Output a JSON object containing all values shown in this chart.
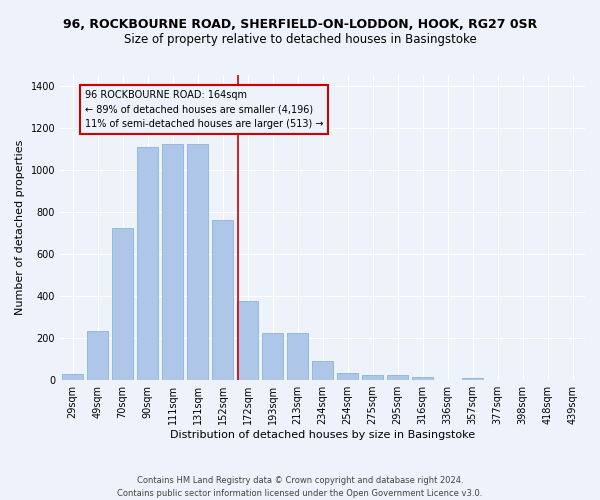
{
  "title": "96, ROCKBOURNE ROAD, SHERFIELD-ON-LODDON, HOOK, RG27 0SR",
  "subtitle": "Size of property relative to detached houses in Basingstoke",
  "xlabel": "Distribution of detached houses by size in Basingstoke",
  "ylabel": "Number of detached properties",
  "categories": [
    "29sqm",
    "49sqm",
    "70sqm",
    "90sqm",
    "111sqm",
    "131sqm",
    "152sqm",
    "172sqm",
    "193sqm",
    "213sqm",
    "234sqm",
    "254sqm",
    "275sqm",
    "295sqm",
    "316sqm",
    "336sqm",
    "357sqm",
    "377sqm",
    "398sqm",
    "418sqm",
    "439sqm"
  ],
  "values": [
    30,
    235,
    725,
    1110,
    1120,
    1120,
    760,
    375,
    225,
    225,
    90,
    32,
    25,
    22,
    15,
    0,
    10,
    0,
    0,
    0,
    0
  ],
  "bar_color": "#aec6e8",
  "bar_edge_color": "#7bafd4",
  "reference_line_color": "#cc0000",
  "annotation_text": "96 ROCKBOURNE ROAD: 164sqm\n← 89% of detached houses are smaller (4,196)\n11% of semi-detached houses are larger (513) →",
  "annotation_box_color": "#cc0000",
  "ylim": [
    0,
    1450
  ],
  "yticks": [
    0,
    200,
    400,
    600,
    800,
    1000,
    1200,
    1400
  ],
  "footer_text": "Contains HM Land Registry data © Crown copyright and database right 2024.\nContains public sector information licensed under the Open Government Licence v3.0.",
  "bg_color": "#eef2fa",
  "grid_color": "#ffffff",
  "title_fontsize": 9,
  "subtitle_fontsize": 8.5,
  "axis_label_fontsize": 8,
  "tick_fontsize": 7,
  "ylabel_fontsize": 8,
  "footer_fontsize": 6
}
